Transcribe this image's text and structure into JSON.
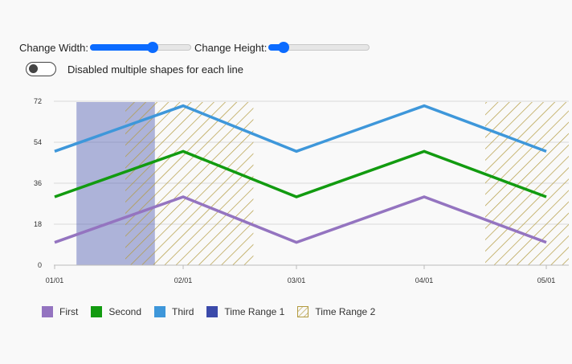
{
  "controls": {
    "width_label": "Change Width:",
    "height_label": "Change Height:",
    "width_value": 0.62,
    "height_value": 0.15,
    "toggle_label": "Disabled multiple shapes for each line",
    "toggle_on": false
  },
  "colors": {
    "first": "#9474c0",
    "second": "#129b10",
    "third": "#3e97da",
    "time_range_1": "#3b4aaa",
    "time_range_2": "#b39b3f",
    "slider": "#0b6bff"
  },
  "chart_data": {
    "type": "line",
    "title": "",
    "xlabel": "",
    "ylabel": "",
    "x": [
      "01/01",
      "02/01",
      "03/01",
      "04/01",
      "05/01"
    ],
    "ylim": [
      0,
      72
    ],
    "yticks": [
      0,
      18,
      36,
      54,
      72
    ],
    "grid": true,
    "series": [
      {
        "name": "First",
        "color": "#9474c0",
        "values": [
          10,
          30,
          10,
          30,
          10
        ]
      },
      {
        "name": "Second",
        "color": "#129b10",
        "values": [
          30,
          50,
          30,
          50,
          30
        ]
      },
      {
        "name": "Third",
        "color": "#3e97da",
        "values": [
          50,
          70,
          50,
          70,
          50
        ]
      }
    ],
    "time_ranges": [
      {
        "name": "Time Range 1",
        "style": "solid",
        "color": "#3b4aaa",
        "start": "01/01 + 0.17",
        "range_fraction": [
          0.17,
          0.78
        ]
      },
      {
        "name": "Time Range 2",
        "style": "hatched",
        "color": "#b39b3f",
        "segments": [
          [
            0.55,
            1.62
          ],
          [
            3.5,
            4.2
          ]
        ]
      }
    ],
    "legend": [
      "First",
      "Second",
      "Third",
      "Time Range 1",
      "Time Range 2"
    ],
    "legend_placement": "bottom-left"
  }
}
